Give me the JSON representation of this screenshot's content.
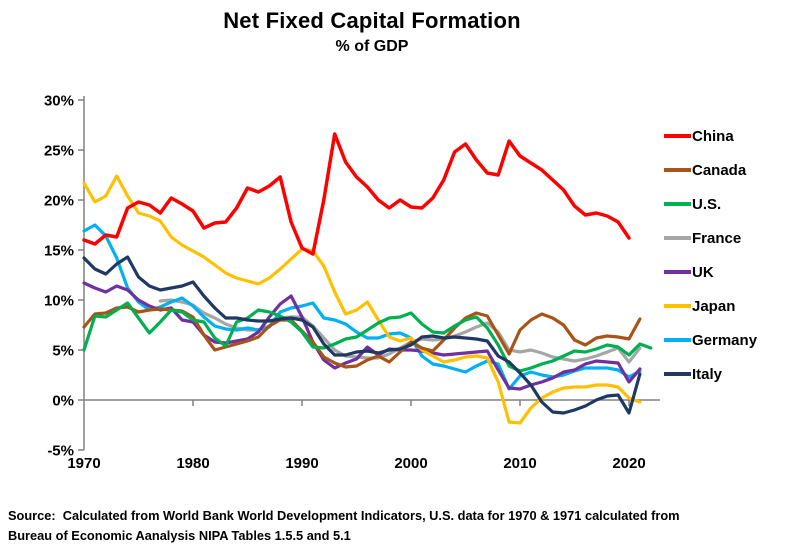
{
  "title": "Net Fixed Capital Formation",
  "subtitle": "% of GDP",
  "source": {
    "line1": "Source:  Calculated from World Bank World Development Indicators, U.S. data for 1970 & 1971 calculated from",
    "line2": "Bureau of Economic Aanalysis NIPA Tables 1.5.5 and 5.1"
  },
  "chart_data": {
    "type": "line",
    "title": "Net Fixed Capital Formation",
    "subtitle": "% of GDP",
    "xlabel": "",
    "ylabel": "",
    "grid": false,
    "legend_position": "right",
    "xlim": [
      1970,
      2022
    ],
    "ylim": [
      -5,
      30
    ],
    "x_axis": {
      "ticks": [
        {
          "value": 1970,
          "label": "1970"
        },
        {
          "value": 1980,
          "label": "1980"
        },
        {
          "value": 1990,
          "label": "1990"
        },
        {
          "value": 2000,
          "label": "2000"
        },
        {
          "value": 2010,
          "label": "2010"
        },
        {
          "value": 2020,
          "label": "2020"
        }
      ]
    },
    "y_axis": {
      "zero_line": true,
      "ticks": [
        {
          "value": 30,
          "label": "30%"
        },
        {
          "value": 25,
          "label": "25%"
        },
        {
          "value": 20,
          "label": "20%"
        },
        {
          "value": 15,
          "label": "15%"
        },
        {
          "value": 10,
          "label": "10%"
        },
        {
          "value": 5,
          "label": "5%"
        },
        {
          "value": 0,
          "label": "0%"
        },
        {
          "value": -5,
          "label": "-5%"
        }
      ]
    },
    "years": [
      1970,
      1971,
      1972,
      1973,
      1974,
      1975,
      1976,
      1977,
      1978,
      1979,
      1980,
      1981,
      1982,
      1983,
      1984,
      1985,
      1986,
      1987,
      1988,
      1989,
      1990,
      1991,
      1992,
      1993,
      1994,
      1995,
      1996,
      1997,
      1998,
      1999,
      2000,
      2001,
      2002,
      2003,
      2004,
      2005,
      2006,
      2007,
      2008,
      2009,
      2010,
      2011,
      2012,
      2013,
      2014,
      2015,
      2016,
      2017,
      2018,
      2019,
      2020,
      2021,
      2022
    ],
    "series": [
      {
        "name": "China",
        "color": "#FF0000",
        "values": [
          16.0,
          15.6,
          16.5,
          16.3,
          19.2,
          19.8,
          19.5,
          18.7,
          20.2,
          19.6,
          18.9,
          17.2,
          17.7,
          17.8,
          19.2,
          21.2,
          20.8,
          21.4,
          22.3,
          17.8,
          15.2,
          14.6,
          20.0,
          26.6,
          23.8,
          22.3,
          21.3,
          20.0,
          19.2,
          20.0,
          19.3,
          19.2,
          20.2,
          22.0,
          24.8,
          25.6,
          24.0,
          22.7,
          22.5,
          25.9,
          24.4,
          23.7,
          23.0,
          22.0,
          21.0,
          19.4,
          18.5,
          18.7,
          18.4,
          17.8,
          16.2,
          null,
          null
        ]
      },
      {
        "name": "Canada",
        "color": "#A85418",
        "values": [
          7.3,
          8.6,
          8.7,
          9.2,
          9.3,
          8.8,
          9.0,
          9.1,
          9.0,
          8.9,
          8.3,
          6.5,
          5.0,
          5.3,
          5.6,
          5.9,
          6.3,
          7.4,
          8.0,
          8.0,
          6.9,
          5.8,
          4.3,
          3.7,
          3.3,
          3.4,
          4.0,
          4.4,
          3.8,
          4.8,
          5.8,
          5.2,
          4.9,
          6.0,
          7.2,
          8.2,
          8.7,
          8.4,
          6.5,
          4.6,
          7.0,
          8.0,
          8.6,
          8.2,
          7.5,
          6.0,
          5.5,
          6.2,
          6.4,
          6.3,
          6.1,
          8.1,
          null
        ]
      },
      {
        "name": "U.S.",
        "color": "#00B050",
        "values": [
          5.0,
          8.4,
          8.3,
          9.0,
          9.7,
          8.2,
          6.7,
          7.8,
          9.0,
          8.8,
          8.0,
          7.8,
          6.2,
          5.4,
          7.8,
          8.2,
          9.0,
          8.8,
          8.4,
          7.8,
          6.8,
          5.3,
          5.2,
          5.6,
          6.1,
          6.3,
          7.0,
          7.7,
          8.2,
          8.3,
          8.7,
          7.6,
          6.8,
          6.7,
          7.4,
          8.0,
          8.3,
          7.2,
          5.5,
          3.4,
          2.9,
          3.2,
          3.6,
          3.9,
          4.4,
          4.9,
          4.8,
          5.1,
          5.5,
          5.3,
          4.5,
          5.6,
          5.2
        ]
      },
      {
        "name": "France",
        "color": "#A6A6A6",
        "values": [
          null,
          null,
          null,
          null,
          null,
          null,
          null,
          9.9,
          10.0,
          9.8,
          9.5,
          8.7,
          8.2,
          7.6,
          7.2,
          7.0,
          7.0,
          7.4,
          8.2,
          8.3,
          8.3,
          7.4,
          6.2,
          5.0,
          4.4,
          4.3,
          4.2,
          4.2,
          4.6,
          5.2,
          5.8,
          6.1,
          6.0,
          6.1,
          6.4,
          6.8,
          7.3,
          7.7,
          6.8,
          5.0,
          4.8,
          5.0,
          4.7,
          4.3,
          4.1,
          3.9,
          4.1,
          4.4,
          4.8,
          5.2,
          3.8,
          5.2,
          null
        ]
      },
      {
        "name": "UK",
        "color": "#7030A0",
        "values": [
          11.7,
          11.2,
          10.8,
          11.4,
          11.0,
          10.0,
          9.4,
          9.0,
          9.2,
          8.0,
          7.8,
          6.5,
          5.8,
          5.7,
          5.9,
          6.1,
          6.8,
          8.3,
          9.6,
          10.4,
          8.3,
          5.8,
          4.0,
          3.2,
          3.7,
          4.1,
          5.3,
          4.5,
          5.1,
          5.0,
          5.0,
          4.9,
          4.7,
          4.5,
          4.6,
          4.7,
          4.8,
          4.9,
          3.0,
          1.2,
          1.1,
          1.5,
          1.8,
          2.2,
          2.8,
          3.0,
          3.6,
          3.9,
          3.8,
          3.7,
          1.8,
          3.1,
          null
        ]
      },
      {
        "name": "Japan",
        "color": "#FFC000",
        "values": [
          21.7,
          19.8,
          20.4,
          22.4,
          20.4,
          18.7,
          18.4,
          17.9,
          16.3,
          15.5,
          14.9,
          14.3,
          13.5,
          12.7,
          12.2,
          11.9,
          11.6,
          12.2,
          13.1,
          14.1,
          15.1,
          14.9,
          13.4,
          10.8,
          8.6,
          9.0,
          9.8,
          8.0,
          6.3,
          5.9,
          6.2,
          5.0,
          4.4,
          3.8,
          4.0,
          4.3,
          4.4,
          4.2,
          1.8,
          -2.2,
          -2.3,
          -0.8,
          0.2,
          0.8,
          1.2,
          1.3,
          1.3,
          1.5,
          1.5,
          1.3,
          0.2,
          -0.2,
          null
        ]
      },
      {
        "name": "Germany",
        "color": "#00B0F0",
        "values": [
          16.9,
          17.5,
          16.4,
          14.2,
          11.2,
          9.8,
          9.0,
          9.3,
          9.8,
          10.2,
          9.4,
          8.3,
          7.4,
          7.1,
          7.0,
          7.2,
          7.0,
          7.3,
          8.8,
          9.2,
          9.4,
          9.7,
          8.2,
          8.0,
          7.6,
          6.8,
          6.2,
          6.2,
          6.6,
          6.7,
          6.2,
          4.4,
          3.6,
          3.4,
          3.1,
          2.8,
          3.4,
          3.9,
          3.6,
          1.1,
          2.4,
          2.8,
          2.5,
          2.3,
          2.5,
          2.9,
          3.2,
          3.2,
          3.2,
          3.0,
          2.3,
          2.9,
          null
        ]
      },
      {
        "name": "Italy",
        "color": "#1F3864",
        "values": [
          14.2,
          13.1,
          12.6,
          13.6,
          14.3,
          12.3,
          11.4,
          11.0,
          11.2,
          11.4,
          11.8,
          10.4,
          9.2,
          8.2,
          8.2,
          8.0,
          7.9,
          7.9,
          8.1,
          8.2,
          8.0,
          7.3,
          5.6,
          4.5,
          4.5,
          4.8,
          4.9,
          4.7,
          5.0,
          5.1,
          5.5,
          6.3,
          6.4,
          6.2,
          6.3,
          6.2,
          6.1,
          5.9,
          4.4,
          3.8,
          2.7,
          1.5,
          -0.2,
          -1.2,
          -1.3,
          -1.0,
          -0.6,
          0.0,
          0.4,
          0.5,
          -1.3,
          2.6,
          null
        ]
      }
    ]
  }
}
